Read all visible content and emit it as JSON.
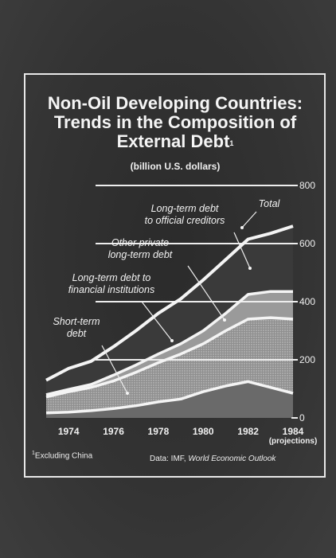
{
  "title": "Non-Oil Developing Countries:\nTrends in the Composition of\nExternal Debt",
  "title_mark": "1",
  "subtitle": "(billion U.S. dollars)",
  "footnote": {
    "mark": "1",
    "text": "Excluding China"
  },
  "source": {
    "prefix": "Data: IMF, ",
    "publication": "World Economic Outlook"
  },
  "chart_data": {
    "type": "area",
    "stacked": true,
    "x": [
      1973,
      1974,
      1975,
      1976,
      1977,
      1978,
      1979,
      1980,
      1981,
      1982,
      1983,
      1984
    ],
    "x_tick_labels": [
      "1974",
      "1976",
      "1978",
      "1980",
      "1982",
      "1984"
    ],
    "x_tick_values": [
      1974,
      1976,
      1978,
      1980,
      1982,
      1984
    ],
    "x_note": "(projections)",
    "y_ticks": [
      0,
      200,
      400,
      600,
      800
    ],
    "ylim": [
      0,
      800
    ],
    "grid": true,
    "series": [
      {
        "name": "Short-term debt",
        "values": [
          17,
          20,
          25,
          32,
          42,
          55,
          65,
          90,
          110,
          125,
          105,
          85
        ],
        "fill": "#6a6a6a"
      },
      {
        "name": "Long-term debt to financial institutions",
        "values": [
          55,
          70,
          80,
          95,
          115,
          135,
          155,
          165,
          190,
          215,
          240,
          255
        ],
        "fill": "#b9b9b9"
      },
      {
        "name": "Other private long-term debt",
        "values": [
          8,
          8,
          10,
          20,
          25,
          30,
          35,
          45,
          60,
          85,
          90,
          95
        ],
        "fill": "#9a9a9a"
      },
      {
        "name": "Long-term debt to official creditors",
        "values": [
          50,
          72,
          80,
          98,
          118,
          140,
          155,
          175,
          185,
          190,
          200,
          225
        ],
        "fill": "#3a3a3a"
      }
    ],
    "total": {
      "name": "Total",
      "values": [
        130,
        170,
        195,
        245,
        300,
        360,
        410,
        475,
        545,
        615,
        635,
        660
      ]
    },
    "annotations": [
      {
        "text": "Long-term debt\nto official creditors",
        "series": "Long-term debt to official creditors"
      },
      {
        "text": "Total",
        "series": "Total"
      },
      {
        "text": "Other private\nlong-term debt",
        "series": "Other private long-term debt"
      },
      {
        "text": "Long-term debt to\nfinancial institutions",
        "series": "Long-term debt to financial institutions"
      },
      {
        "text": "Short-term\ndebt",
        "series": "Short-term debt"
      }
    ]
  }
}
